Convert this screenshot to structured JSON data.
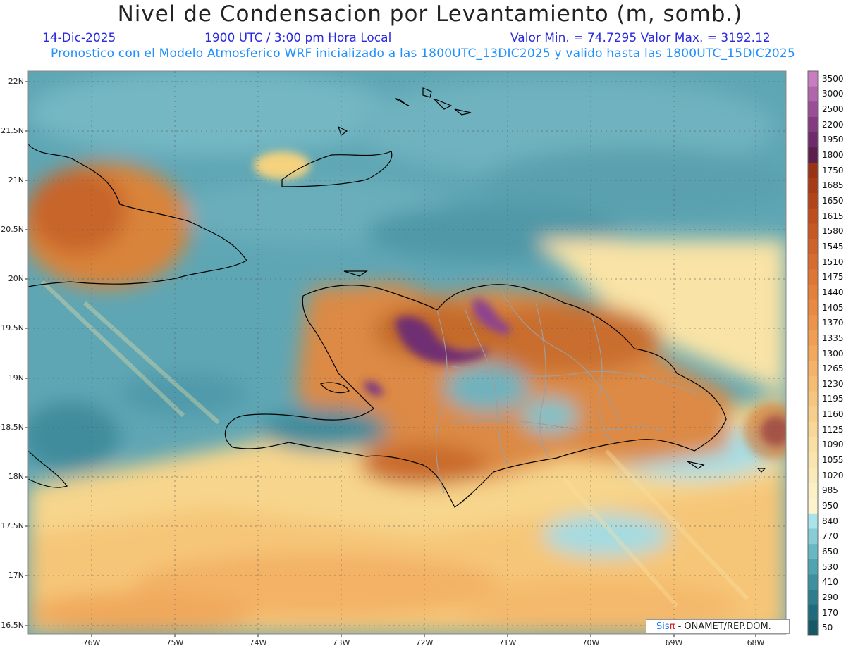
{
  "title": "Nivel de Condensacion por Levantamiento (m, somb.)",
  "date": "14-Dic-2025",
  "time_text": "1900 UTC / 3:00 pm Hora Local",
  "minmax_text": "Valor Min. = 74.7295  Valor Max. = 3192.12",
  "forecast_text": "Pronostico con el Modelo Atmosferico WRF inicializado a las 1800UTC_13DIC2025 y valido hasta las  1800UTC_15DIC2025",
  "lat_labels": [
    "22N",
    "21.5N",
    "21N",
    "20.5N",
    "20N",
    "19.5N",
    "19N",
    "18.5N",
    "18N",
    "17.5N",
    "17N",
    "16.5N"
  ],
  "lon_labels": [
    "76W",
    "75W",
    "74W",
    "73W",
    "72W",
    "71W",
    "70W",
    "69W",
    "68W"
  ],
  "colorbar": {
    "labels": [
      "3500",
      "3000",
      "2500",
      "2200",
      "1950",
      "1800",
      "1750",
      "1685",
      "1650",
      "1615",
      "1580",
      "1545",
      "1510",
      "1475",
      "1440",
      "1405",
      "1370",
      "1335",
      "1300",
      "1265",
      "1230",
      "1195",
      "1160",
      "1125",
      "1090",
      "1055",
      "1020",
      "985",
      "950",
      "840",
      "770",
      "650",
      "530",
      "410",
      "290",
      "170",
      "50"
    ],
    "colors": [
      "#c77dc0",
      "#b065ad",
      "#9a4e98",
      "#843a82",
      "#6e2a6c",
      "#5c1e4c",
      "#9c3214",
      "#a83a16",
      "#b44418",
      "#bf4e1c",
      "#c85822",
      "#d06228",
      "#d86c2e",
      "#df7634",
      "#e5803a",
      "#ea8a42",
      "#ee944a",
      "#f19e54",
      "#f3a85e",
      "#f5b268",
      "#f6bc72",
      "#f7c67e",
      "#f8cf8a",
      "#f9d796",
      "#fadfa2",
      "#fbe5ae",
      "#fcebba",
      "#fdf0c4",
      "#fdf3cc",
      "#a8e4ea",
      "#86cdd6",
      "#68b8c4",
      "#4fa4b2",
      "#3c90a0",
      "#2c7d8e",
      "#1f6a7c",
      "#155866"
    ]
  },
  "credit": {
    "sis": "Sis",
    "pi": "π",
    "rest": " - ONAMET/REP.DOM."
  }
}
